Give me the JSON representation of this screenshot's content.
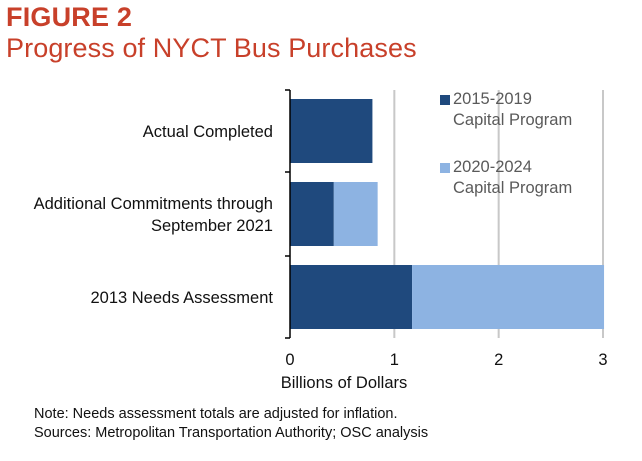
{
  "figure": {
    "label": "FIGURE 2",
    "title": "Progress of NYCT Bus Purchases"
  },
  "chart_data": {
    "type": "bar",
    "orientation": "horizontal",
    "stacked": true,
    "categories": [
      [
        "Actual Completed"
      ],
      [
        "Additional Commitments through",
        "September 2021"
      ],
      [
        "2013 Needs Assessment"
      ]
    ],
    "series": [
      {
        "name_lines": [
          "2015-2019",
          "Capital Program"
        ],
        "color": "#1f497d",
        "values": [
          0.79,
          0.42,
          1.17
        ]
      },
      {
        "name_lines": [
          "2020-2024",
          "Capital Program"
        ],
        "color": "#8db3e2",
        "values": [
          0,
          0.42,
          1.84
        ]
      }
    ],
    "xlabel": "Billions of Dollars",
    "xlim": [
      0,
      3
    ],
    "xticks": [
      "0",
      "1",
      "2",
      "3"
    ],
    "grid": "vertical",
    "legend_position": "top-right-inside"
  },
  "notes": {
    "note": "Note: Needs assessment totals are adjusted for inflation.",
    "sources": "Sources: Metropolitan Transportation Authority; OSC analysis"
  }
}
